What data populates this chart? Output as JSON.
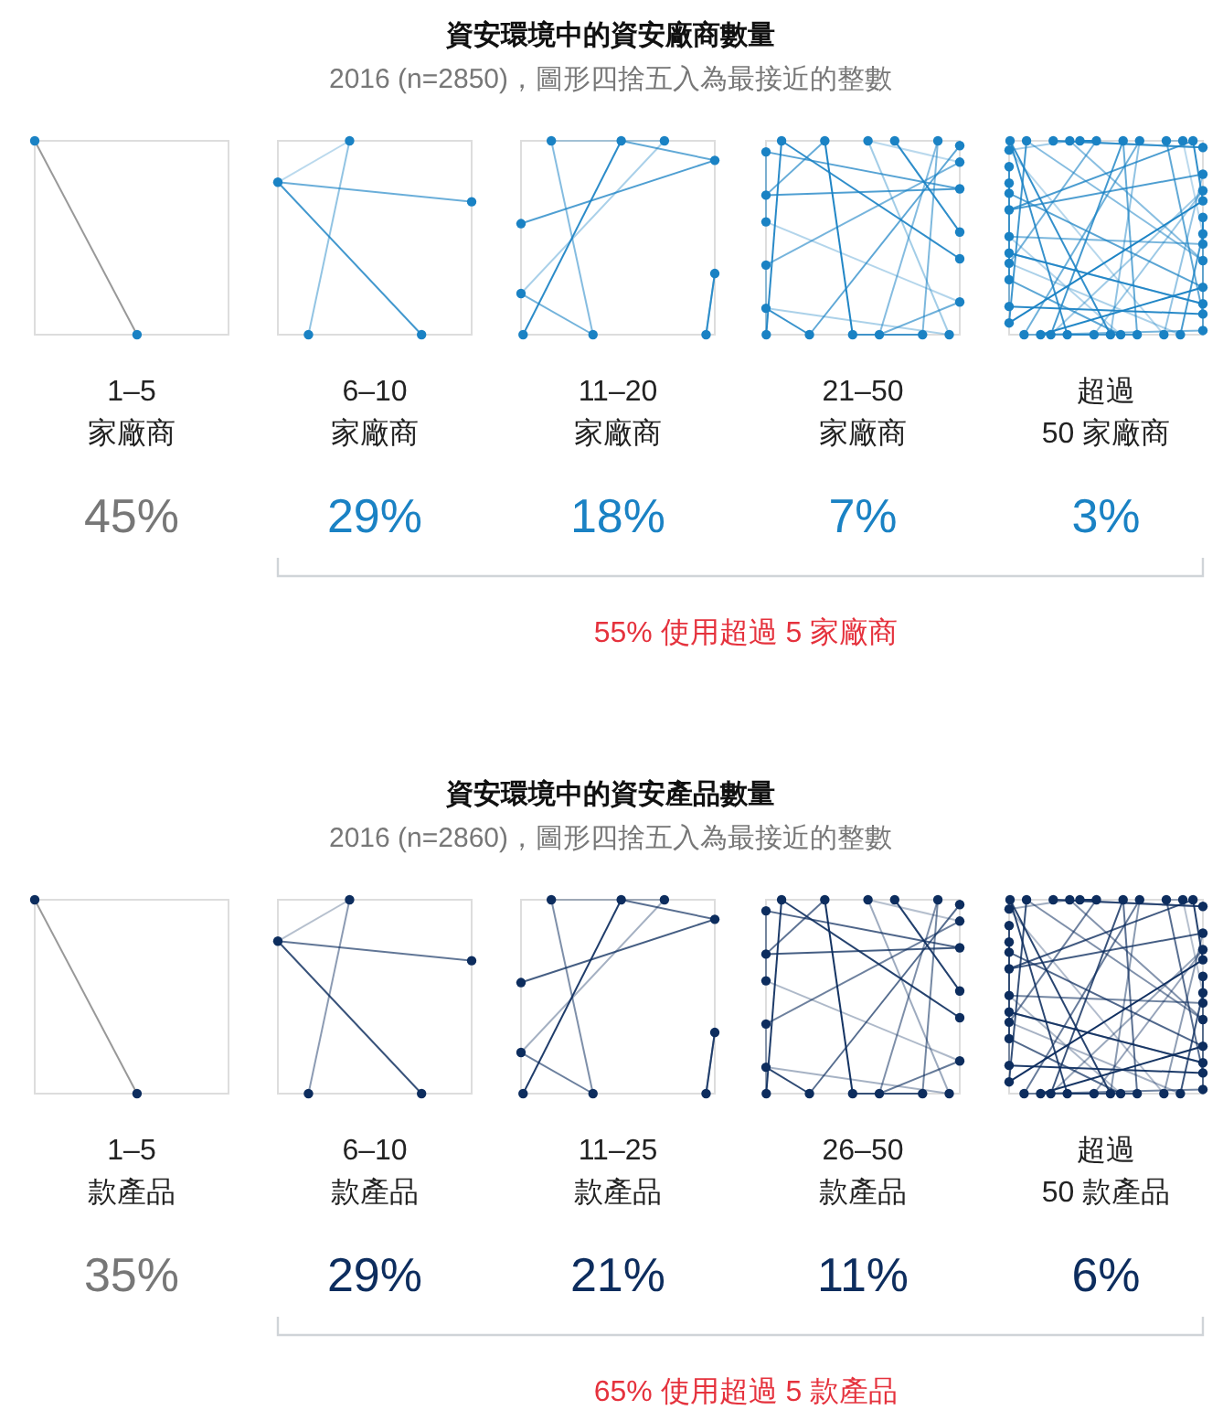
{
  "chart_data": [
    {
      "type": "other",
      "title": "資安環境中的資安廠商數量",
      "subtitle": "2016 (n=2850)，圖形四捨五入為最接近的整數",
      "categories": [
        "1–5\n家廠商",
        "6–10\n家廠商",
        "11–20\n家廠商",
        "21–50\n家廠商",
        "超過\n50 家廠商"
      ],
      "values": [
        45,
        29,
        18,
        7,
        3
      ],
      "value_labels": [
        "45%",
        "29%",
        "18%",
        "7%",
        "3%"
      ],
      "colors": [
        "#777777",
        "#1a82c4",
        "#1a82c4",
        "#1a82c4",
        "#1a82c4"
      ],
      "annotations": [
        "55% 使用超過 5 家廠商"
      ]
    },
    {
      "type": "other",
      "title": "資安環境中的資安產品數量",
      "subtitle": "2016 (n=2860)，圖形四捨五入為最接近的整數",
      "categories": [
        "1–5\n款產品",
        "6–10\n款產品",
        "11–25\n款產品",
        "26–50\n款產品",
        "超過\n50 款產品"
      ],
      "values": [
        35,
        29,
        21,
        11,
        6
      ],
      "value_labels": [
        "35%",
        "29%",
        "21%",
        "11%",
        "6%"
      ],
      "colors": [
        "#777777",
        "#0d2d5e",
        "#0d2d5e",
        "#0d2d5e",
        "#0d2d5e"
      ],
      "annotations": [
        "65% 使用超過 5 款產品"
      ]
    }
  ]
}
